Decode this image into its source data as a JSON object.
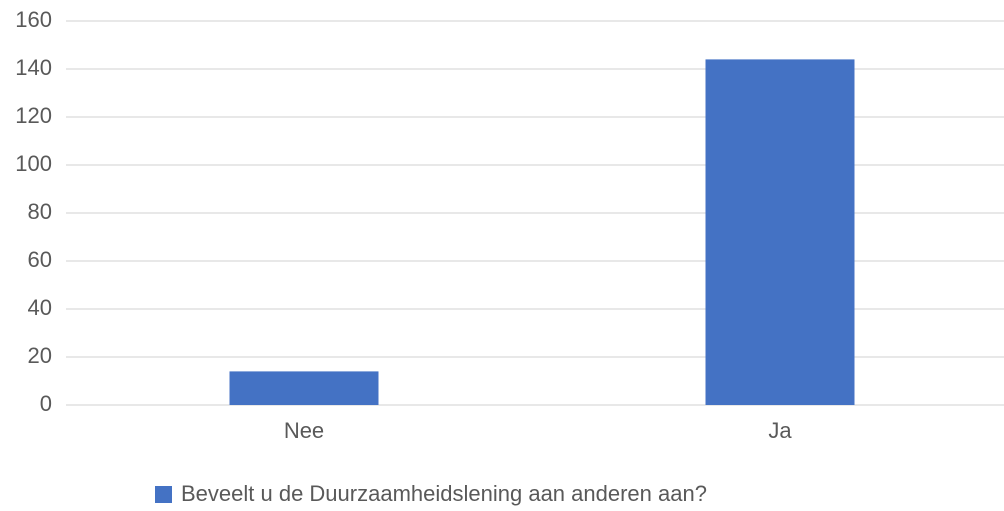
{
  "chart_data": {
    "type": "bar",
    "categories": [
      "Nee",
      "Ja"
    ],
    "series": [
      {
        "name": "Beveelt u de Duurzaamheidslening aan anderen aan?",
        "color": "#4472c4",
        "values": [
          14,
          144
        ]
      }
    ],
    "ylim": [
      0,
      160
    ],
    "yticks": [
      0,
      20,
      40,
      60,
      80,
      100,
      120,
      140,
      160
    ],
    "grid": true,
    "legend": "bottom"
  }
}
